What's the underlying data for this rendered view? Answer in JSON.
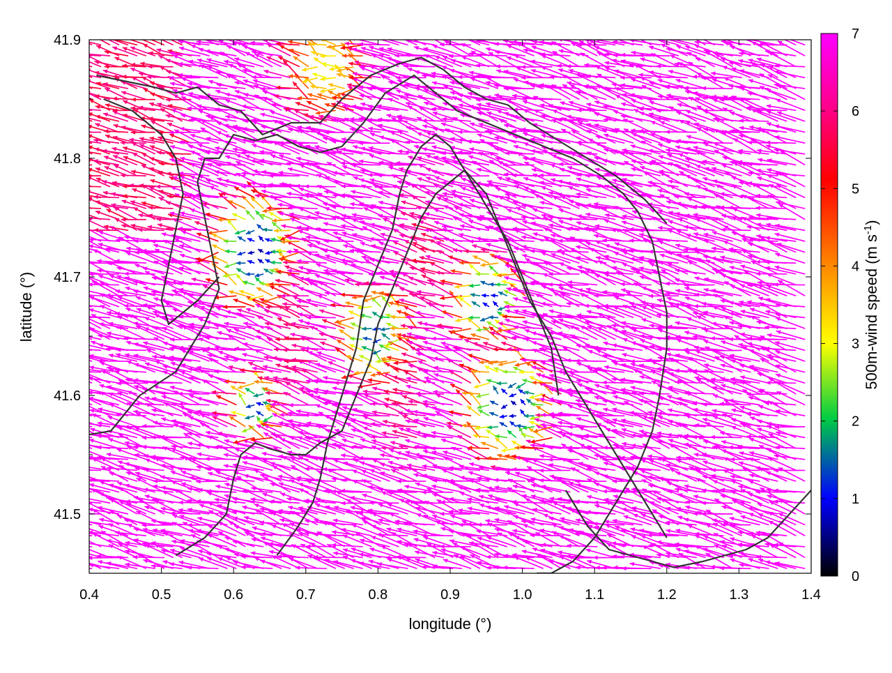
{
  "chart_data": {
    "type": "vector-field",
    "title": "",
    "xlabel": "longitude (°)",
    "ylabel": "latitude (°)",
    "xlim": [
      0.4,
      1.4
    ],
    "ylim": [
      41.45,
      41.9
    ],
    "xticks": [
      "0.4",
      "0.5",
      "0.6",
      "0.7",
      "0.8",
      "0.9",
      "1.0",
      "1.1",
      "1.2",
      "1.3",
      "1.4"
    ],
    "yticks": [
      "41.5",
      "41.6",
      "41.7",
      "41.8",
      "41.9"
    ],
    "colorbar": {
      "label_main": "500m-wind speed (m s",
      "label_sup": "-1",
      "label_end": ")",
      "range": [
        0,
        7
      ],
      "ticks": [
        "0",
        "1",
        "2",
        "3",
        "4",
        "5",
        "6",
        "7"
      ],
      "colors": [
        "#000000",
        "#0000ff",
        "#00cc44",
        "#ffff00",
        "#ff8800",
        "#ff0000",
        "#ff00ff"
      ]
    },
    "contours": [
      {
        "lon": [
          0.4,
          0.43,
          0.47,
          0.52,
          0.54,
          0.56,
          0.58,
          0.57,
          0.56,
          0.55,
          0.56,
          0.58,
          0.6,
          0.63,
          0.66,
          0.69,
          0.72,
          0.75,
          0.78,
          0.81,
          0.85,
          0.88,
          0.91,
          0.95,
          0.99,
          1.03,
          1.07,
          1.11,
          1.14,
          1.16,
          1.18,
          1.19,
          1.2,
          1.2,
          1.19,
          1.18,
          1.16,
          1.13,
          1.1,
          1.07,
          1.04,
          1.02
        ],
        "lat": [
          41.567,
          41.57,
          41.6,
          41.62,
          41.64,
          41.66,
          41.69,
          41.72,
          41.75,
          41.78,
          41.8,
          41.8,
          41.82,
          41.815,
          41.82,
          41.81,
          41.805,
          41.81,
          41.83,
          41.855,
          41.87,
          41.855,
          41.84,
          41.83,
          41.82,
          41.81,
          41.8,
          41.785,
          41.77,
          41.755,
          41.73,
          41.7,
          41.67,
          41.64,
          41.6,
          41.57,
          41.54,
          41.51,
          41.48,
          41.46,
          41.45,
          41.45
        ]
      },
      {
        "lon": [
          0.52,
          0.56,
          0.59,
          0.6,
          0.61,
          0.63,
          0.65,
          0.68,
          0.7,
          0.72,
          0.75,
          0.77,
          0.79,
          0.8,
          0.82,
          0.84,
          0.86,
          0.88,
          0.9,
          0.92,
          0.95,
          0.97,
          0.99,
          1.01,
          1.04,
          1.06,
          1.08,
          1.1,
          1.12,
          1.14,
          1.16,
          1.18,
          1.2
        ],
        "lat": [
          41.465,
          41.48,
          41.5,
          41.53,
          41.55,
          41.56,
          41.555,
          41.55,
          41.55,
          41.56,
          41.57,
          41.6,
          41.63,
          41.66,
          41.69,
          41.72,
          41.75,
          41.77,
          41.78,
          41.79,
          41.77,
          41.74,
          41.71,
          41.68,
          41.65,
          41.62,
          41.6,
          41.58,
          41.56,
          41.54,
          41.52,
          41.5,
          41.48
        ]
      },
      {
        "lon": [
          0.66,
          0.69,
          0.71,
          0.72,
          0.73,
          0.75,
          0.77,
          0.78,
          0.8,
          0.82,
          0.83,
          0.84,
          0.86,
          0.88,
          0.9,
          0.92,
          0.94,
          0.96,
          0.98,
          1.0,
          1.02,
          1.04,
          1.05
        ],
        "lat": [
          41.465,
          41.49,
          41.51,
          41.53,
          41.56,
          41.6,
          41.64,
          41.68,
          41.71,
          41.74,
          41.77,
          41.79,
          41.81,
          41.82,
          41.81,
          41.79,
          41.77,
          41.75,
          41.73,
          41.7,
          41.67,
          41.64,
          41.6
        ]
      },
      {
        "lon": [
          0.41,
          0.45,
          0.49,
          0.52,
          0.55,
          0.58,
          0.61,
          0.64,
          0.68,
          0.72,
          0.75,
          0.79,
          0.83,
          0.86,
          0.89,
          0.92,
          0.95,
          0.98,
          1.01,
          1.05,
          1.09,
          1.13,
          1.17,
          1.2
        ],
        "lat": [
          41.87,
          41.865,
          41.86,
          41.855,
          41.86,
          41.845,
          41.84,
          41.82,
          41.83,
          41.83,
          41.85,
          41.87,
          41.88,
          41.885,
          41.875,
          41.86,
          41.85,
          41.845,
          41.83,
          41.815,
          41.8,
          41.785,
          41.765,
          41.745
        ]
      },
      {
        "lon": [
          0.42,
          0.46,
          0.5,
          0.52,
          0.53,
          0.52,
          0.51,
          0.5,
          0.51,
          0.53,
          0.55,
          0.58
        ],
        "lat": [
          41.85,
          41.84,
          41.82,
          41.8,
          41.77,
          41.74,
          41.71,
          41.68,
          41.66,
          41.67,
          41.68,
          41.7
        ]
      },
      {
        "lon": [
          1.06,
          1.09,
          1.12,
          1.15,
          1.18,
          1.21,
          1.25,
          1.28,
          1.31,
          1.34,
          1.37,
          1.4
        ],
        "lat": [
          41.52,
          41.49,
          41.47,
          41.465,
          41.46,
          41.455,
          41.46,
          41.465,
          41.47,
          41.48,
          41.5,
          41.52
        ]
      }
    ],
    "field": {
      "centers": [
        {
          "lon": 0.64,
          "lat": 41.72,
          "r": 0.075,
          "s": 0.6
        },
        {
          "lon": 0.81,
          "lat": 41.65,
          "r": 0.065,
          "s": 0.9
        },
        {
          "lon": 0.96,
          "lat": 41.68,
          "r": 0.06,
          "s": 0.8
        },
        {
          "lon": 0.99,
          "lat": 41.59,
          "r": 0.075,
          "s": 0.7
        },
        {
          "lon": 0.64,
          "lat": 41.59,
          "r": 0.045,
          "s": 0.9
        },
        {
          "lon": 0.74,
          "lat": 41.875,
          "r": 0.07,
          "s": 3.0
        }
      ],
      "ridges": [
        {
          "lon": 0.7,
          "lat": 41.65,
          "r": 0.03,
          "s": 5.8
        },
        {
          "lon": 0.88,
          "lat": 41.72,
          "r": 0.035,
          "s": 5.8
        },
        {
          "lon": 0.85,
          "lat": 41.6,
          "r": 0.03,
          "s": 5.8
        }
      ],
      "base_speed": 7.5,
      "base_direction_deg": 165
    }
  }
}
